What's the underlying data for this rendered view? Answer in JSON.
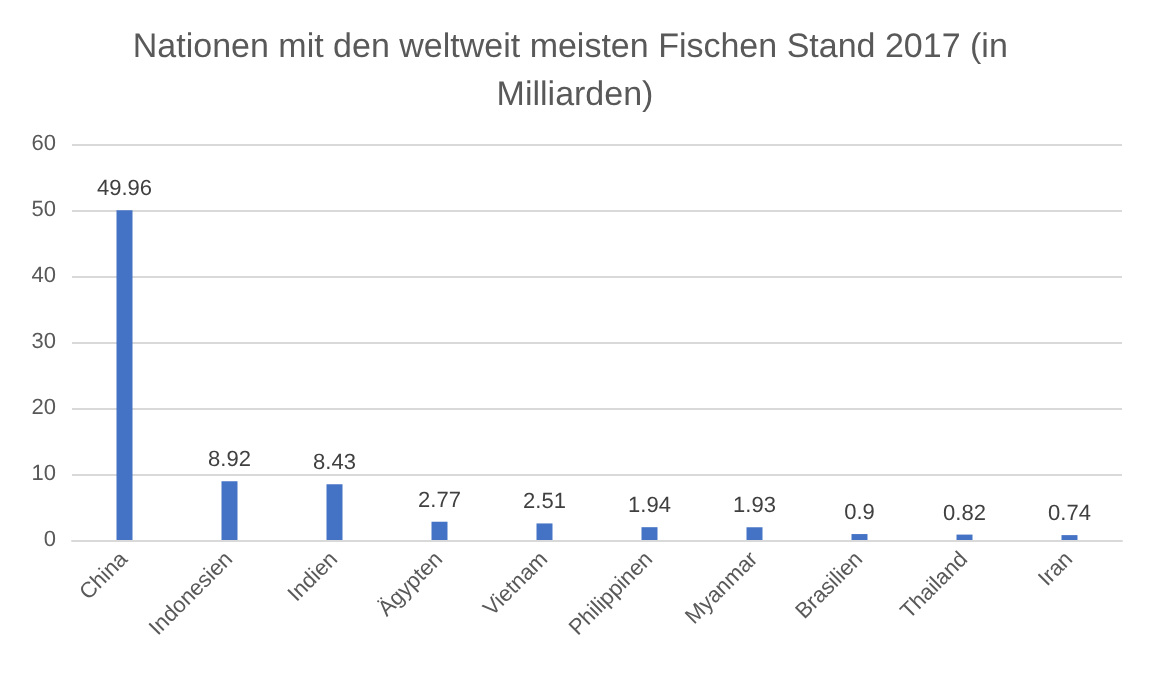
{
  "chart_data": {
    "type": "bar",
    "title": "Nationen mit den weltweit meisten Fischen Stand 2017 (in Milliarden)",
    "categories": [
      "China",
      "Indonesien",
      "Indien",
      "Ägypten",
      "Vietnam",
      "Philippinen",
      "Myanmar",
      "Brasilien",
      "Thailand",
      "Iran"
    ],
    "values": [
      49.96,
      8.92,
      8.43,
      2.77,
      2.51,
      1.94,
      1.93,
      0.9,
      0.82,
      0.74
    ],
    "color": "#4472c4",
    "ylim": [
      0,
      60
    ],
    "yticks": [
      0,
      10,
      20,
      30,
      40,
      50,
      60
    ],
    "grid": "y",
    "data_labels": true
  }
}
